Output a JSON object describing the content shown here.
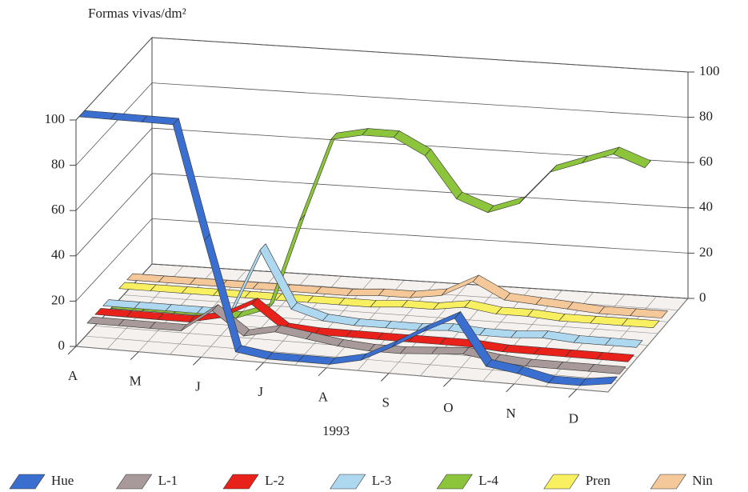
{
  "chart_data": {
    "type": "ribbon3d",
    "title": "Formas vivas/dm²",
    "x_label": "1993",
    "categories": [
      "A",
      null,
      "M",
      null,
      "J",
      null,
      "J",
      null,
      "A",
      null,
      "S",
      null,
      "O",
      null,
      "N",
      null,
      "D",
      null
    ],
    "series": [
      {
        "name": "Hue",
        "color": "#3a6fd0",
        "values": [
          100,
          100,
          100,
          100,
          50,
          2,
          0,
          0,
          0,
          3,
          10,
          18,
          25,
          5,
          3,
          0,
          0,
          2
        ]
      },
      {
        "name": "L-1",
        "color": "#a89a9a",
        "values": [
          5,
          5,
          5,
          5,
          15,
          5,
          8,
          6,
          4,
          3,
          3,
          4,
          5,
          3,
          2,
          2,
          2,
          2
        ]
      },
      {
        "name": "L-2",
        "color": "#e8221a",
        "values": [
          5,
          5,
          5,
          5,
          8,
          15,
          5,
          4,
          4,
          4,
          4,
          4,
          4,
          3,
          3,
          3,
          3,
          3
        ]
      },
      {
        "name": "L-3",
        "color": "#aed8f0",
        "values": [
          5,
          5,
          5,
          5,
          5,
          35,
          10,
          6,
          5,
          5,
          5,
          6,
          5,
          5,
          6,
          5,
          5,
          5
        ]
      },
      {
        "name": "L-4",
        "color": "#8cc43c",
        "values": [
          0,
          0,
          0,
          0,
          0,
          5,
          45,
          82,
          85,
          85,
          78,
          60,
          55,
          60,
          75,
          80,
          85,
          80
        ]
      },
      {
        "name": "Pren",
        "color": "#f8f060",
        "values": [
          5,
          5,
          5,
          5,
          5,
          5,
          5,
          5,
          5,
          6,
          6,
          8,
          6,
          6,
          5,
          5,
          5,
          5
        ]
      },
      {
        "name": "Nin",
        "color": "#f5c89a",
        "values": [
          5,
          5,
          5,
          5,
          5,
          5,
          5,
          5,
          6,
          6,
          8,
          15,
          8,
          7,
          6,
          5,
          5,
          5
        ]
      }
    ],
    "ylim": [
      0,
      100
    ],
    "yticks": [
      0,
      20,
      40,
      60,
      80,
      100
    ],
    "y2lim": [
      0,
      100
    ],
    "y2ticks": [
      0,
      20,
      40,
      60,
      80,
      100
    ],
    "grid": true
  }
}
